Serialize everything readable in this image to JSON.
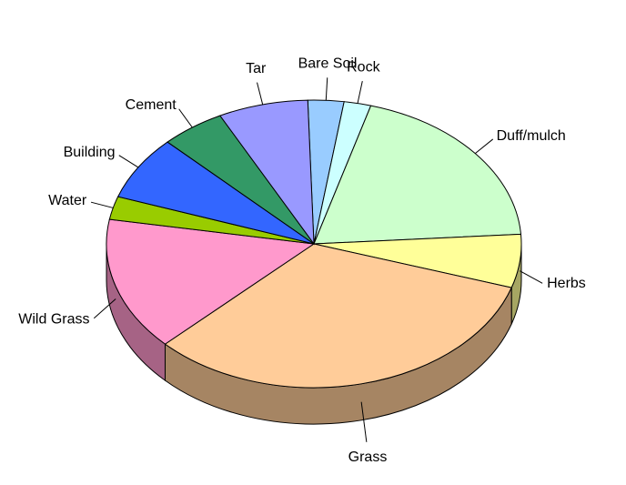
{
  "chart_data": {
    "type": "pie3d",
    "categories": [
      "Bare Soil",
      "Rock",
      "Duff/mulch",
      "Herbs",
      "Grass",
      "Wild Grass",
      "Water",
      "Building",
      "Cement",
      "Tar"
    ],
    "values": [
      2.8,
      2.1,
      19.5,
      6,
      32.8,
      15,
      2.6,
      7.2,
      5,
      7
    ],
    "colors": [
      "#99ccff",
      "#ccffff",
      "#ccffcc",
      "#ffff99",
      "#ffcc99",
      "#ff99cc",
      "#99cc00",
      "#3366ff",
      "#339966",
      "#9999ff"
    ]
  }
}
